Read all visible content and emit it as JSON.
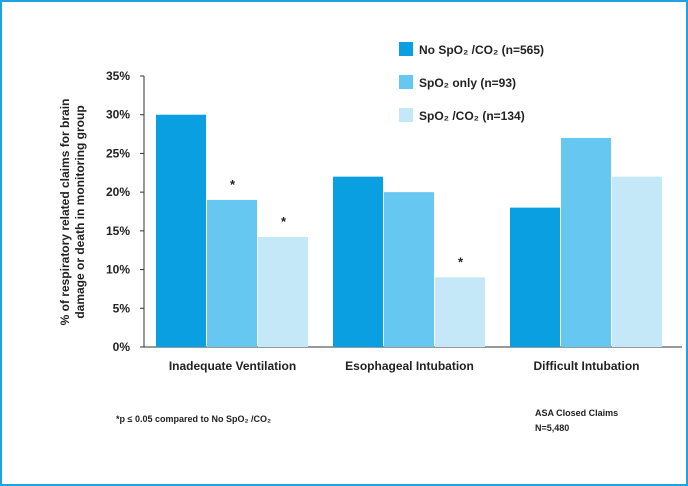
{
  "chart_data": {
    "type": "bar",
    "categories": [
      "Inadequate Ventilation",
      "Esophageal Intubation",
      "Difficult Intubation"
    ],
    "series": [
      {
        "name": "No SpO₂ /CO₂ (n=565)",
        "values": [
          30,
          22,
          18
        ],
        "color": "#0a9fe0"
      },
      {
        "name": "SpO₂  only (n=93)",
        "values": [
          19,
          20,
          27
        ],
        "color": "#66c8f0"
      },
      {
        "name": "SpO₂ /CO₂ (n=134)",
        "values": [
          14.2,
          9,
          22
        ],
        "color": "#c4e8f8"
      }
    ],
    "ylabel_lines": [
      "% of respiratory related claims for brain",
      "damage or death in monitoring group"
    ],
    "ylim": [
      0,
      35
    ],
    "yticks": [
      "0%",
      "5%",
      "10%",
      "15%",
      "20%",
      "25%",
      "30%",
      "35%"
    ],
    "grid": false,
    "legend_position": "top-right",
    "significance_marker": "*",
    "significant_bars": [
      {
        "category": 0,
        "series": 1
      },
      {
        "category": 0,
        "series": 2
      },
      {
        "category": 1,
        "series": 2
      }
    ],
    "footnote": "*p ≤ 0.05 compared to No SpO₂ /CO₂",
    "source_line1": "ASA Closed Claims",
    "source_line2": "N=5,480"
  }
}
